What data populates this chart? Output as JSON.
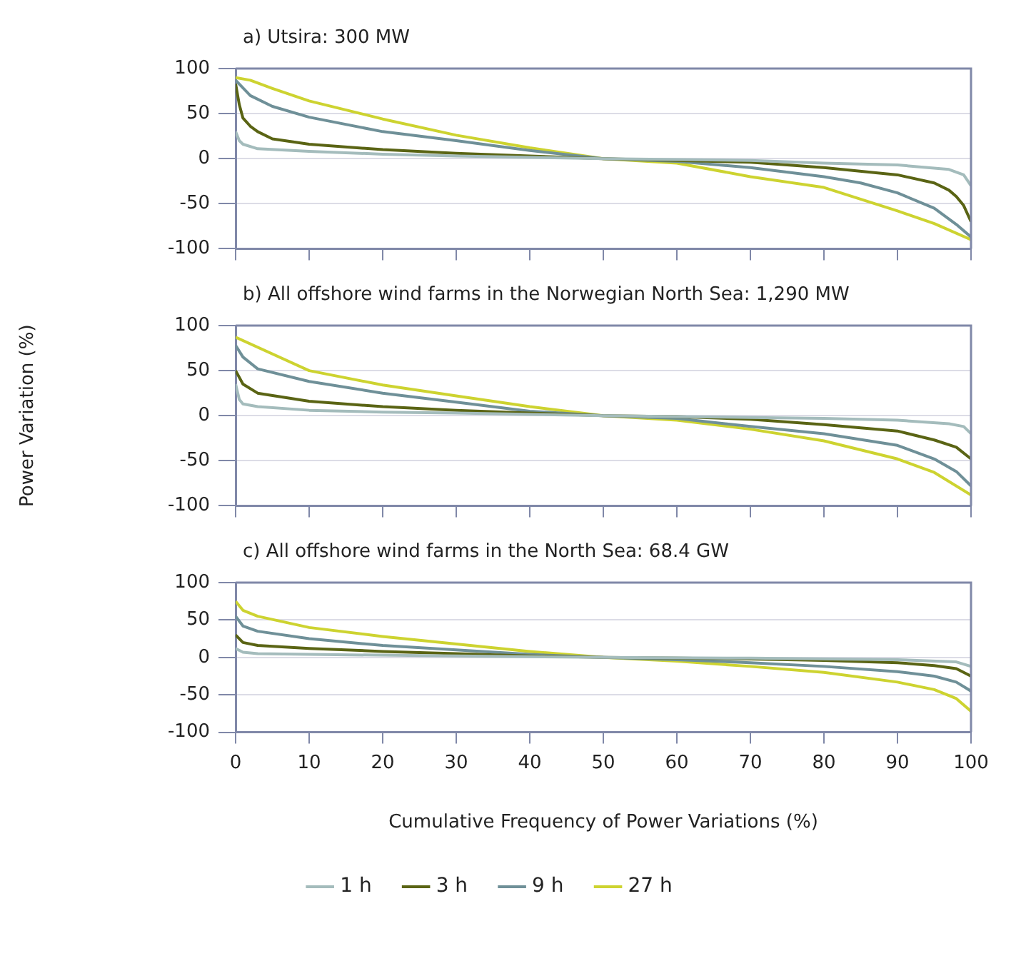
{
  "chart_data": [
    {
      "type": "line",
      "title": "a) Utsira: 300 MW",
      "xlim": [
        0,
        100
      ],
      "xticks": [
        0,
        10,
        20,
        30,
        40,
        50,
        60,
        70,
        80,
        90,
        100
      ],
      "ylim": [
        -100,
        100
      ],
      "yticks": [
        -100,
        -50,
        0,
        50,
        100
      ],
      "grid": "y",
      "tick_labels": "y",
      "marker": "none",
      "legend": false,
      "series": [
        {
          "color": "#a4bcbc",
          "x": [
            0,
            0.5,
            1,
            3,
            10,
            20,
            30,
            50,
            70,
            80,
            90,
            97,
            99,
            100
          ],
          "values": [
            30,
            20,
            16,
            11,
            8,
            5,
            3,
            0,
            -2,
            -5,
            -7,
            -12,
            -18,
            -30
          ]
        },
        {
          "color": "#5a6414",
          "x": [
            0,
            0.5,
            1,
            2,
            3,
            5,
            10,
            20,
            30,
            40,
            50,
            60,
            70,
            80,
            90,
            95,
            97,
            98,
            99,
            100
          ],
          "values": [
            83,
            60,
            45,
            36,
            30,
            22,
            16,
            10,
            6,
            3,
            0,
            -2,
            -4,
            -10,
            -18,
            -27,
            -35,
            -42,
            -52,
            -70
          ]
        },
        {
          "color": "#6f9098",
          "x": [
            0,
            2,
            5,
            10,
            20,
            30,
            40,
            50,
            60,
            70,
            80,
            85,
            90,
            95,
            98,
            100
          ],
          "values": [
            87,
            70,
            58,
            46,
            30,
            20,
            9,
            0,
            -3,
            -10,
            -20,
            -27,
            -38,
            -55,
            -73,
            -87
          ]
        },
        {
          "color": "#cdd330",
          "x": [
            0,
            2,
            5,
            10,
            20,
            30,
            40,
            50,
            60,
            70,
            80,
            90,
            95,
            100
          ],
          "values": [
            90,
            87,
            78,
            64,
            44,
            26,
            12,
            0,
            -5,
            -20,
            -32,
            -58,
            -72,
            -90
          ]
        }
      ]
    },
    {
      "type": "line",
      "title": "b) All offshore wind farms in the Norwegian North Sea: 1,290 MW",
      "ylabel": "Power Variation (%)",
      "xlim": [
        0,
        100
      ],
      "xticks": [
        0,
        10,
        20,
        30,
        40,
        50,
        60,
        70,
        80,
        90,
        100
      ],
      "ylim": [
        -100,
        100
      ],
      "yticks": [
        -100,
        -50,
        0,
        50,
        100
      ],
      "grid": "y",
      "tick_labels": "y",
      "marker": "none",
      "legend": false,
      "series": [
        {
          "color": "#a4bcbc",
          "x": [
            0,
            0.5,
            1,
            3,
            10,
            20,
            30,
            50,
            70,
            80,
            90,
            97,
            99,
            100
          ],
          "values": [
            35,
            18,
            13,
            10,
            6,
            4,
            3,
            0,
            -2,
            -3,
            -5,
            -9,
            -12,
            -20
          ]
        },
        {
          "color": "#5a6414",
          "x": [
            0,
            1,
            3,
            10,
            20,
            30,
            40,
            50,
            60,
            70,
            80,
            90,
            95,
            98,
            100
          ],
          "values": [
            50,
            35,
            25,
            16,
            10,
            6,
            3,
            0,
            -1,
            -4,
            -10,
            -17,
            -27,
            -35,
            -48
          ]
        },
        {
          "color": "#6f9098",
          "x": [
            0,
            1,
            3,
            10,
            20,
            30,
            40,
            50,
            60,
            70,
            80,
            90,
            95,
            98,
            100
          ],
          "values": [
            78,
            65,
            52,
            38,
            25,
            15,
            5,
            0,
            -3,
            -12,
            -20,
            -33,
            -48,
            -62,
            -78
          ]
        },
        {
          "color": "#cdd330",
          "x": [
            0,
            10,
            20,
            30,
            40,
            50,
            60,
            70,
            80,
            90,
            95,
            100
          ],
          "values": [
            87,
            50,
            34,
            22,
            10,
            0,
            -5,
            -15,
            -28,
            -48,
            -63,
            -88
          ]
        }
      ]
    },
    {
      "type": "line",
      "title": "c) All offshore wind farms in the North Sea: 68.4 GW",
      "xlabel": "Cumulative Frequency of Power Variations (%)",
      "xlim": [
        0,
        100
      ],
      "xticks": [
        0,
        10,
        20,
        30,
        40,
        50,
        60,
        70,
        80,
        90,
        100
      ],
      "ylim": [
        -100,
        100
      ],
      "yticks": [
        -100,
        -50,
        0,
        50,
        100
      ],
      "grid": "y",
      "marker": "none",
      "legend": "bottom",
      "series": [
        {
          "name": "1 h",
          "color": "#a4bcbc",
          "x": [
            0,
            1,
            3,
            10,
            30,
            50,
            70,
            90,
            98,
            100
          ],
          "values": [
            12,
            7,
            5,
            4,
            2,
            0,
            -1,
            -3,
            -6,
            -12
          ]
        },
        {
          "name": "3 h",
          "color": "#5a6414",
          "x": [
            0,
            1,
            3,
            10,
            20,
            30,
            40,
            50,
            60,
            70,
            80,
            90,
            95,
            98,
            100
          ],
          "values": [
            30,
            20,
            16,
            12,
            8,
            5,
            2,
            0,
            -1,
            -2,
            -4,
            -7,
            -11,
            -15,
            -25
          ]
        },
        {
          "name": "9 h",
          "color": "#6f9098",
          "x": [
            0,
            1,
            3,
            10,
            20,
            30,
            40,
            50,
            60,
            70,
            80,
            90,
            95,
            98,
            100
          ],
          "values": [
            55,
            42,
            35,
            25,
            16,
            10,
            4,
            0,
            -3,
            -7,
            -12,
            -19,
            -25,
            -33,
            -45
          ]
        },
        {
          "name": "27 h",
          "color": "#cdd330",
          "x": [
            0,
            1,
            3,
            10,
            20,
            30,
            40,
            50,
            60,
            70,
            80,
            90,
            95,
            98,
            100
          ],
          "values": [
            75,
            63,
            55,
            40,
            28,
            18,
            8,
            0,
            -5,
            -12,
            -20,
            -33,
            -43,
            -55,
            -72
          ]
        }
      ]
    }
  ]
}
